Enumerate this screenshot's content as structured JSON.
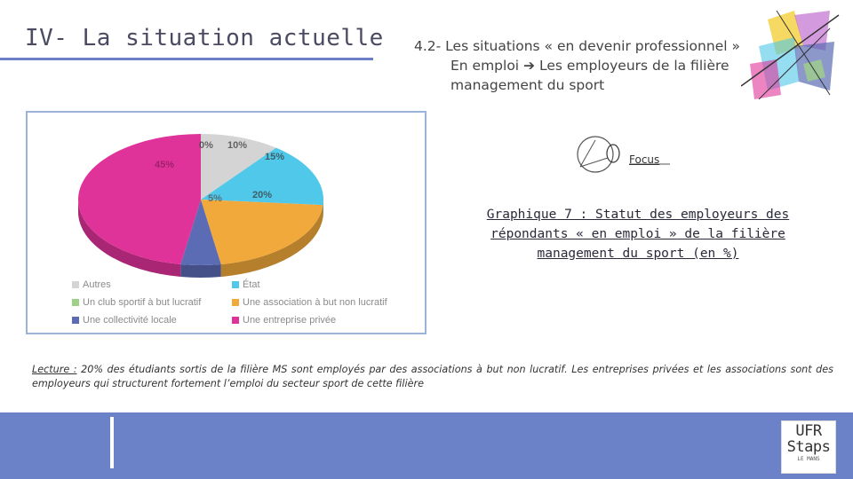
{
  "header": {
    "title": "IV- La situation actuelle",
    "subtitle_line1": "4.2- Les situations « en devenir professionnel »",
    "subtitle_line2": "En emploi ➔ Les employeurs de la filière",
    "subtitle_line3": "management du sport"
  },
  "focus": {
    "label": "Focus"
  },
  "graph_title": {
    "line1": "Graphique 7 : Statut des employeurs des",
    "line2": "répondants « en emploi » de la filière",
    "line3": "management du sport (en %)"
  },
  "chart_data": {
    "type": "pie",
    "slices": [
      {
        "label": "Autres",
        "value": 10,
        "display": "10%",
        "color": "#d4d4d4"
      },
      {
        "label": "Un club sportif à but lucratif",
        "value": 0,
        "display": "0%",
        "color": "#9fd08a"
      },
      {
        "label": "Une collectivité locale",
        "value": 5,
        "display": "5%",
        "color": "#5b6bb4"
      },
      {
        "label": "État",
        "value": 15,
        "display": "15%",
        "color": "#4fc8ea"
      },
      {
        "label": "Une association à but non lucratif",
        "value": 20,
        "display": "20%",
        "color": "#f2a93b"
      },
      {
        "label": "Une entreprise privée",
        "value": 45,
        "display": "45%",
        "color": "#e0339a"
      }
    ],
    "slice_order": [
      "État",
      "Un club sportif à but lucratif",
      "Une association à but non lucratif",
      "Une collectivité locale",
      "Une entreprise privée",
      "Autres"
    ],
    "legend_placement": "bottom"
  },
  "lecture": {
    "label": "Lecture :",
    "text": " 20% des étudiants sortis de la filière MS sont employés par des associations à but non lucratif. Les entreprises privées et les associations sont des employeurs qui structurent fortement l’emploi du secteur sport de cette filière"
  },
  "logo": {
    "line1": "UFR",
    "line2": "Staps",
    "line3": "LE MANS"
  },
  "colors": {
    "accent": "#6b82c9",
    "title": "#4a4a62"
  }
}
